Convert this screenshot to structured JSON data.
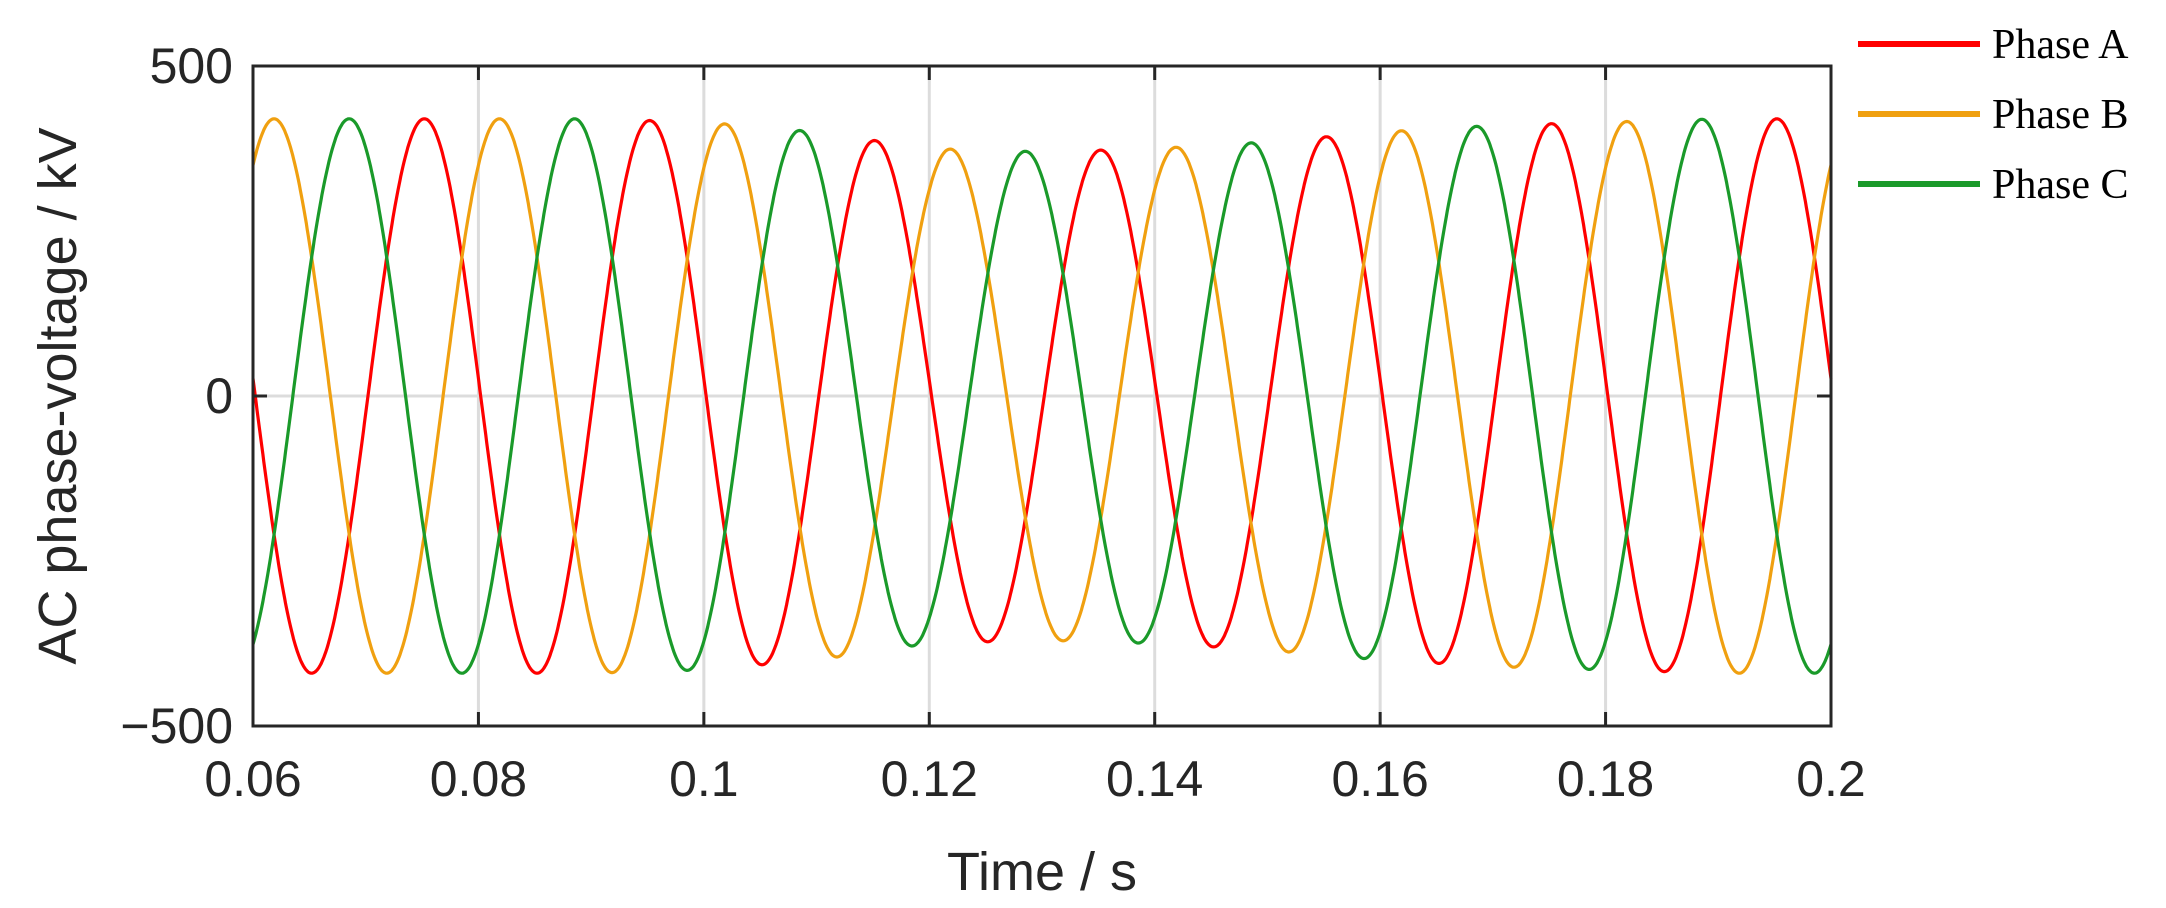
{
  "chart_data": {
    "type": "line",
    "title": "",
    "xlabel": "Time / s",
    "ylabel": "AC phase-voltage / kV",
    "xlim": [
      0.06,
      0.2
    ],
    "ylim": [
      -500,
      500
    ],
    "x_ticks": [
      0.06,
      0.08,
      0.1,
      0.12,
      0.14,
      0.16,
      0.18,
      0.2
    ],
    "x_tick_labels": [
      "0.06",
      "0.08",
      "0.1",
      "0.12",
      "0.14",
      "0.16",
      "0.18",
      "0.2"
    ],
    "y_ticks": [
      -500,
      0,
      500
    ],
    "y_tick_labels": [
      "−500",
      "0",
      "500"
    ],
    "grid": true,
    "legend_position": "outside-top-right",
    "frequency_hz": 50,
    "series": [
      {
        "name": "Phase A",
        "color": "#ff0000",
        "phase_shift_deg": 0,
        "amplitude_envelope": {
          "t": [
            0.06,
            0.07,
            0.08,
            0.09,
            0.1,
            0.11,
            0.12,
            0.13,
            0.14,
            0.15,
            0.16,
            0.17,
            0.18,
            0.19,
            0.2
          ],
          "kv": [
            420,
            420,
            420,
            420,
            415,
            400,
            375,
            370,
            375,
            385,
            400,
            410,
            415,
            420,
            420
          ]
        },
        "samples": [
          {
            "t": 0.06,
            "v": 50
          },
          {
            "t": 0.0652,
            "v": -420
          },
          {
            "t": 0.0752,
            "v": 420
          },
          {
            "t": 0.0852,
            "v": -420
          },
          {
            "t": 0.0952,
            "v": 420
          },
          {
            "t": 0.1052,
            "v": -410
          },
          {
            "t": 0.1152,
            "v": 420
          },
          {
            "t": 0.1252,
            "v": -375
          },
          {
            "t": 0.1352,
            "v": 385
          },
          {
            "t": 0.1452,
            "v": -385
          },
          {
            "t": 0.1552,
            "v": 405
          },
          {
            "t": 0.1652,
            "v": -405
          },
          {
            "t": 0.1752,
            "v": 410
          },
          {
            "t": 0.1852,
            "v": -410
          },
          {
            "t": 0.1952,
            "v": 420
          },
          {
            "t": 0.2,
            "v": 90
          }
        ]
      },
      {
        "name": "Phase B",
        "color": "#f0a010",
        "phase_shift_deg": -120,
        "amplitude_envelope": {
          "t": [
            0.06,
            0.07,
            0.08,
            0.09,
            0.1,
            0.11,
            0.12,
            0.13,
            0.14,
            0.15,
            0.16,
            0.17,
            0.18,
            0.19,
            0.2
          ],
          "kv": [
            420,
            420,
            420,
            420,
            415,
            400,
            375,
            370,
            375,
            385,
            400,
            410,
            415,
            420,
            420
          ]
        },
        "samples": [
          {
            "t": 0.06,
            "v": 350
          },
          {
            "t": 0.062,
            "v": 420
          },
          {
            "t": 0.072,
            "v": -420
          },
          {
            "t": 0.082,
            "v": 420
          },
          {
            "t": 0.092,
            "v": -420
          },
          {
            "t": 0.102,
            "v": 410
          },
          {
            "t": 0.112,
            "v": -390
          },
          {
            "t": 0.122,
            "v": 375
          },
          {
            "t": 0.132,
            "v": -380
          },
          {
            "t": 0.142,
            "v": 390
          },
          {
            "t": 0.152,
            "v": -390
          },
          {
            "t": 0.162,
            "v": 400
          },
          {
            "t": 0.172,
            "v": -405
          },
          {
            "t": 0.182,
            "v": 410
          },
          {
            "t": 0.192,
            "v": -415
          },
          {
            "t": 0.2,
            "v": 310
          }
        ]
      },
      {
        "name": "Phase C",
        "color": "#1a9a2a",
        "phase_shift_deg": 120,
        "amplitude_envelope": {
          "t": [
            0.06,
            0.07,
            0.08,
            0.09,
            0.1,
            0.11,
            0.12,
            0.13,
            0.14,
            0.15,
            0.16,
            0.17,
            0.18,
            0.19,
            0.2
          ],
          "kv": [
            420,
            420,
            420,
            420,
            415,
            400,
            375,
            370,
            375,
            385,
            400,
            410,
            415,
            420,
            420
          ]
        },
        "samples": [
          {
            "t": 0.06,
            "v": -395
          },
          {
            "t": 0.0685,
            "v": 420
          },
          {
            "t": 0.0785,
            "v": -420
          },
          {
            "t": 0.0885,
            "v": 420
          },
          {
            "t": 0.0985,
            "v": -420
          },
          {
            "t": 0.1085,
            "v": 405
          },
          {
            "t": 0.1185,
            "v": -375
          },
          {
            "t": 0.1285,
            "v": 365
          },
          {
            "t": 0.1385,
            "v": -345
          },
          {
            "t": 0.1485,
            "v": 360
          },
          {
            "t": 0.1585,
            "v": -395
          },
          {
            "t": 0.1685,
            "v": 410
          },
          {
            "t": 0.1785,
            "v": -405
          },
          {
            "t": 0.1885,
            "v": 415
          },
          {
            "t": 0.1985,
            "v": -410
          },
          {
            "t": 0.2,
            "v": -395
          }
        ]
      }
    ]
  }
}
